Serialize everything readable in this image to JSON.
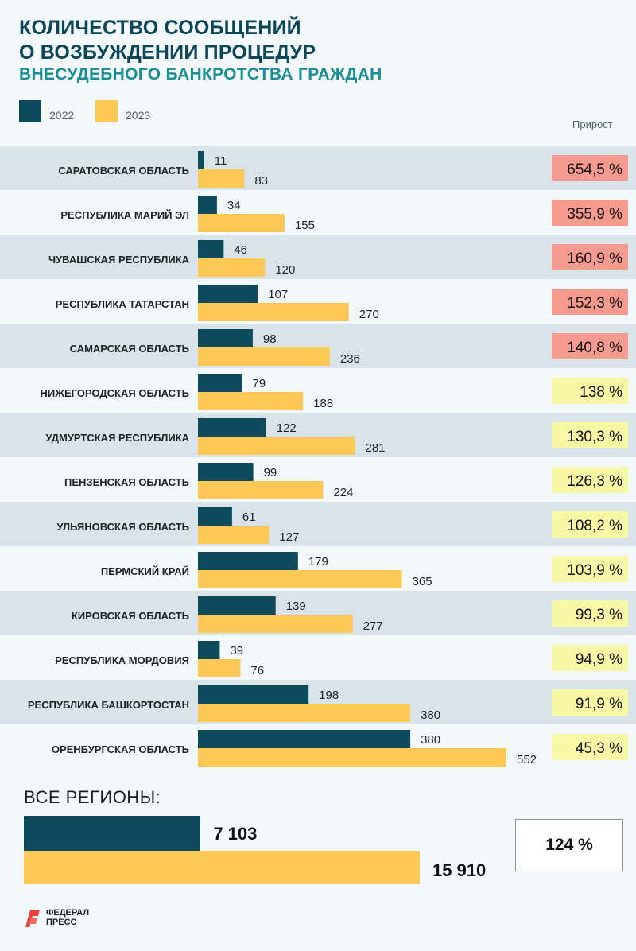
{
  "header": {
    "title_line1": "КОЛИЧЕСТВО СООБЩЕНИЙ",
    "title_line2": "О ВОЗБУЖДЕНИИ ПРОЦЕДУР",
    "subtitle": "ВНЕСУДЕБНОГО БАНКРОТСТВА ГРАЖДАН"
  },
  "colors": {
    "series_2022": "#0c4a5c",
    "series_2023": "#fec857",
    "growth_high": "#f59a8f",
    "growth_low": "#f8f7a6",
    "stripe": "#d8e4e9"
  },
  "chart_data": {
    "type": "bar",
    "orientation": "horizontal",
    "categories": [
      "САРАТОВСКАЯ ОБЛАСТЬ",
      "РЕСПУБЛИКА МАРИЙ ЭЛ",
      "ЧУВАШСКАЯ РЕСПУБЛИКА",
      "РЕСПУБЛИКА ТАТАРСТАН",
      "САМАРСКАЯ ОБЛАСТЬ",
      "НИЖЕГОРОДСКАЯ ОБЛАСТЬ",
      "УДМУРТСКАЯ РЕСПУБЛИКА",
      "ПЕНЗЕНСКАЯ ОБЛАСТЬ",
      "УЛЬЯНОВСКАЯ ОБЛАСТЬ",
      "ПЕРМСКИЙ КРАЙ",
      "КИРОВСКАЯ ОБЛАСТЬ",
      "РЕСПУБЛИКА МОРДОВИЯ",
      "РЕСПУБЛИКА БАШКОРТОСТАН",
      "ОРЕНБУРГСКАЯ ОБЛАСТЬ"
    ],
    "series": [
      {
        "name": "2022",
        "values": [
          11,
          34,
          46,
          107,
          98,
          79,
          122,
          99,
          61,
          179,
          139,
          39,
          198,
          380
        ]
      },
      {
        "name": "2023",
        "values": [
          83,
          155,
          120,
          270,
          236,
          188,
          281,
          224,
          127,
          365,
          277,
          76,
          380,
          552
        ]
      }
    ],
    "growth_label": "Прирост",
    "growth": [
      "654,5 %",
      "355,9 %",
      "160,9 %",
      "152,3 %",
      "140,8 %",
      "138 %",
      "130,3 %",
      "126,3 %",
      "108,2 %",
      "103,9 %",
      "99,3 %",
      "94,9 %",
      "91,9 %",
      "45,3 %"
    ],
    "growth_level": [
      "high",
      "high",
      "high",
      "high",
      "high",
      "low",
      "low",
      "low",
      "low",
      "low",
      "low",
      "low",
      "low",
      "low"
    ],
    "xlim": [
      0,
      552
    ],
    "grid": false,
    "legend": "top-left",
    "totals": {
      "label": "ВСЕ РЕГИОНЫ:",
      "value_2022": 7103,
      "value_2023": 15910,
      "display_2022": "7 103",
      "display_2023": "15 910",
      "growth": "124 %"
    }
  },
  "logo": {
    "line1": "ФЕДЕРАЛ",
    "line2": "ПРЕСС"
  }
}
